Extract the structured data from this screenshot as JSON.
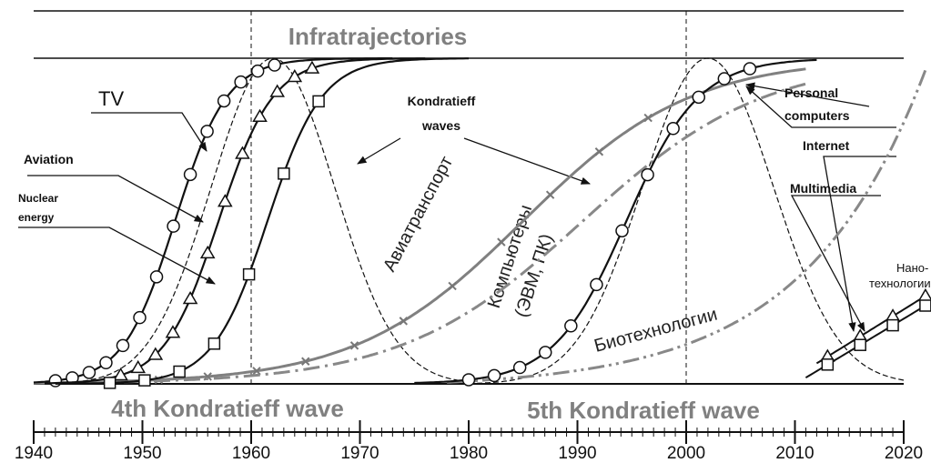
{
  "title": "Infratrajectories",
  "waves": [
    "4th Kondratieff wave",
    "5th Kondratieff wave"
  ],
  "labels": {
    "tv": "TV",
    "aviation": "Aviation",
    "nuclear": [
      "Nuclear",
      "energy"
    ],
    "kondratieff": [
      "Kondratieff",
      "waves"
    ],
    "pc": [
      "Personal",
      "computers"
    ],
    "internet": "Internet",
    "multimedia": "Multimedia",
    "nano": [
      "Нано-",
      "технологии"
    ],
    "avia": "Авиатранспорт",
    "computers": [
      "Компьютеры",
      "(ЭВМ, ПК)"
    ],
    "bio": "Биотехнологии"
  },
  "x_axis": {
    "ticks": [
      1940,
      1950,
      1960,
      1970,
      1980,
      1990,
      2000,
      2010,
      2020
    ]
  }
}
